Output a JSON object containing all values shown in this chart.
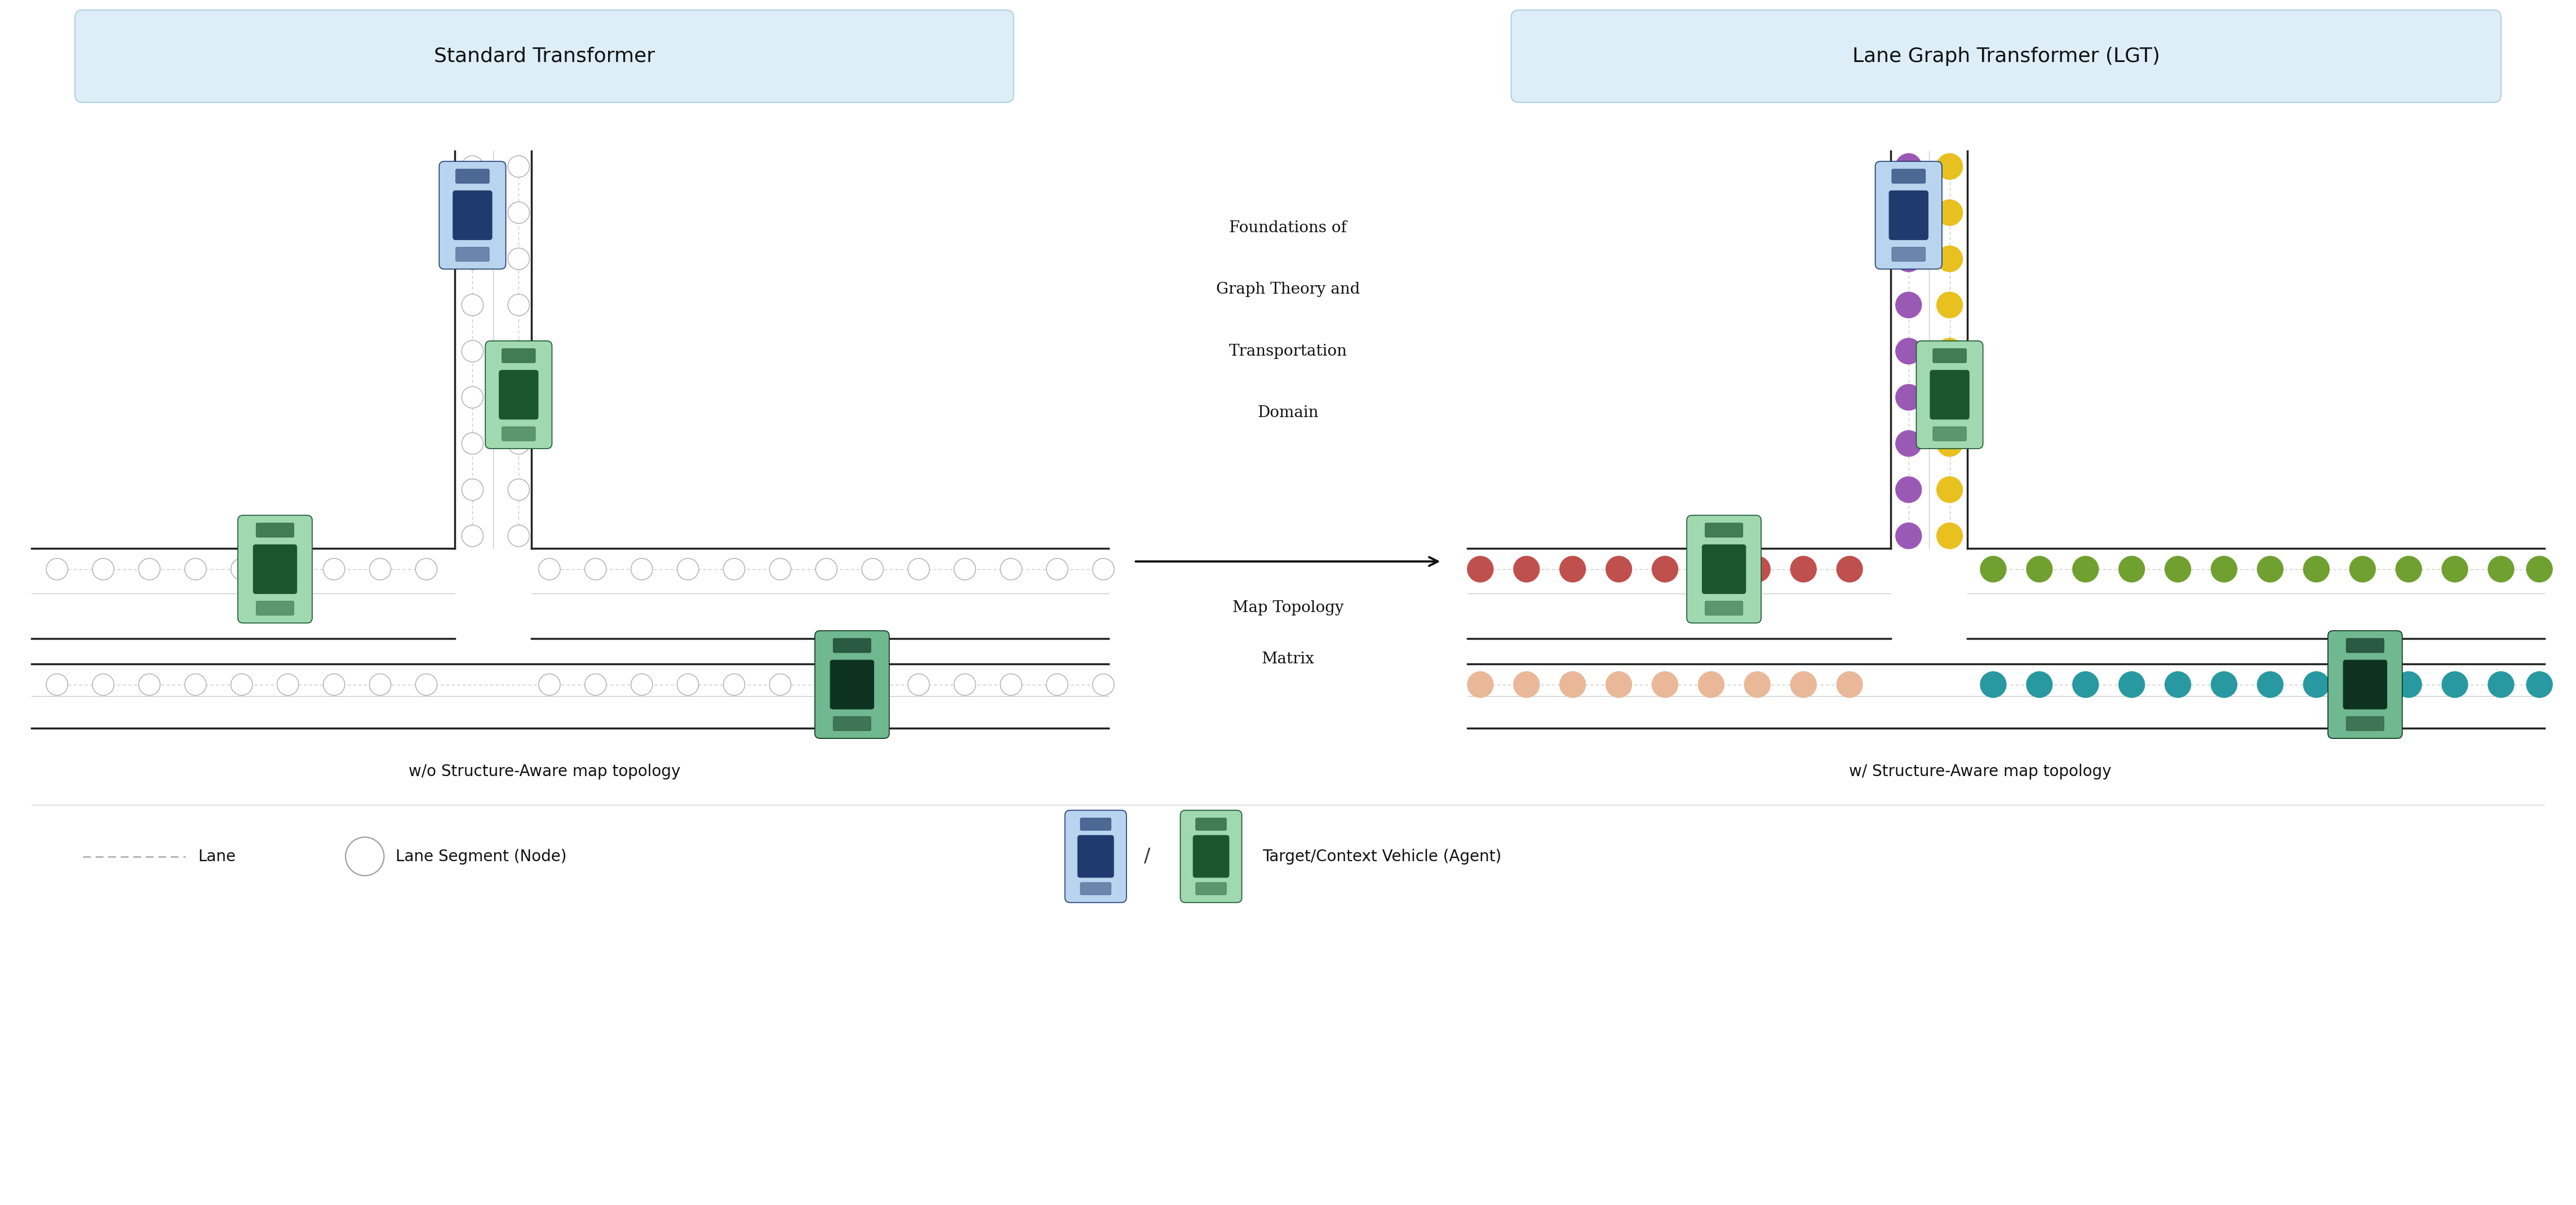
{
  "fig_width": 45.71,
  "fig_height": 21.38,
  "bg_color": "#ffffff",
  "title_left": "Standard Transformer",
  "title_right": "Lane Graph Transformer (LGT)",
  "title_box_color": "#ddeef8",
  "title_box_edge": "#b0cfe0",
  "subtitle_left": "w/o Structure-Aware map topology",
  "subtitle_right": "w/ Structure-Aware map topology",
  "middle_text_line1": "Foundations of",
  "middle_text_line2": "Graph Theory and",
  "middle_text_line3": "Transportation",
  "middle_text_line4": "Domain",
  "middle_text2_line1": "Map Topology",
  "middle_text2_line2": "Matrix",
  "road_color": "#222222",
  "road_divider": "#c0c0c0",
  "node_edge": "#aaaaaa",
  "purple": "#9B59B6",
  "yellow_g": "#E8C020",
  "red_c": "#C0504D",
  "olive_c": "#70A030",
  "teal_c": "#2899A0",
  "salmon_c": "#E8B898",
  "legend_dash_color": "#b0b0b0"
}
